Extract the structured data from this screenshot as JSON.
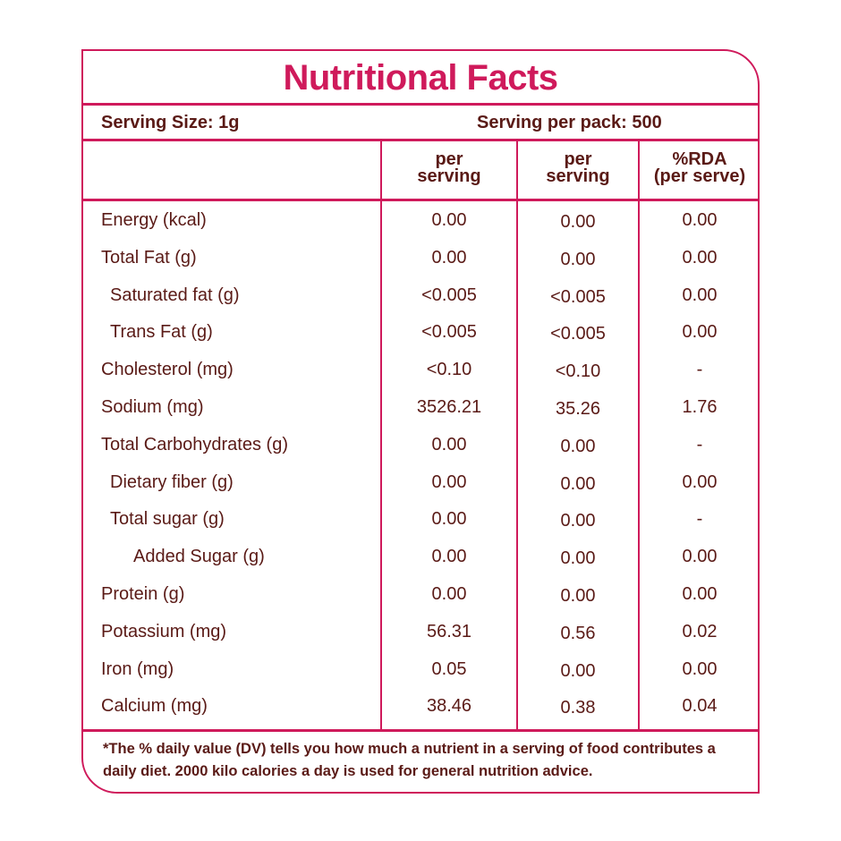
{
  "title": "Nutritional Facts",
  "serving_size": "Serving Size: 1g",
  "serving_per_pack": "Serving per pack: 500",
  "columns": [
    {
      "line1": "per",
      "line2": "serving"
    },
    {
      "line1": "per",
      "line2": "serving"
    },
    {
      "line1": "%RDA",
      "line2": "(per serve)"
    }
  ],
  "rows": [
    {
      "name": "Energy (kcal)",
      "indent": 0,
      "v1": "0.00",
      "v2": "0.00",
      "v3": "0.00"
    },
    {
      "name": "Total Fat (g)",
      "indent": 0,
      "v1": "0.00",
      "v2": "0.00",
      "v3": "0.00"
    },
    {
      "name": "Saturated fat (g)",
      "indent": 1,
      "v1": "<0.005",
      "v2": "<0.005",
      "v3": "0.00"
    },
    {
      "name": "Trans Fat (g)",
      "indent": 1,
      "v1": "<0.005",
      "v2": "<0.005",
      "v3": "0.00"
    },
    {
      "name": "Cholesterol (mg)",
      "indent": 0,
      "v1": "<0.10",
      "v2": "<0.10",
      "v3": "-"
    },
    {
      "name": "Sodium (mg)",
      "indent": 0,
      "v1": "3526.21",
      "v2": "35.26",
      "v3": "1.76"
    },
    {
      "name": "Total Carbohydrates  (g)",
      "indent": 0,
      "v1": "0.00",
      "v2": "0.00",
      "v3": "-"
    },
    {
      "name": "Dietary fiber (g)",
      "indent": 1,
      "v1": "0.00",
      "v2": "0.00",
      "v3": "0.00"
    },
    {
      "name": "Total sugar (g)",
      "indent": 1,
      "v1": "0.00",
      "v2": "0.00",
      "v3": "-"
    },
    {
      "name": "Added Sugar (g)",
      "indent": 2,
      "v1": "0.00",
      "v2": "0.00",
      "v3": "0.00"
    },
    {
      "name": "Protein (g)",
      "indent": 0,
      "v1": "0.00",
      "v2": "0.00",
      "v3": "0.00"
    },
    {
      "name": "Potassium (mg)",
      "indent": 0,
      "v1": "56.31",
      "v2": "0.56",
      "v3": "0.02"
    },
    {
      "name": "Iron (mg)",
      "indent": 0,
      "v1": "0.05",
      "v2": "0.00",
      "v3": "0.00"
    },
    {
      "name": "Calcium (mg)",
      "indent": 0,
      "v1": "38.46",
      "v2": "0.38",
      "v3": "0.04"
    }
  ],
  "footnote": "*The % daily value (DV) tells you how much a nutrient in a serving of food contributes a daily diet. 2000 kilo calories a day is used for general nutrition advice.",
  "colors": {
    "border": "#cf1a5b",
    "title": "#cf1a5b",
    "text": "#5a1a16"
  }
}
